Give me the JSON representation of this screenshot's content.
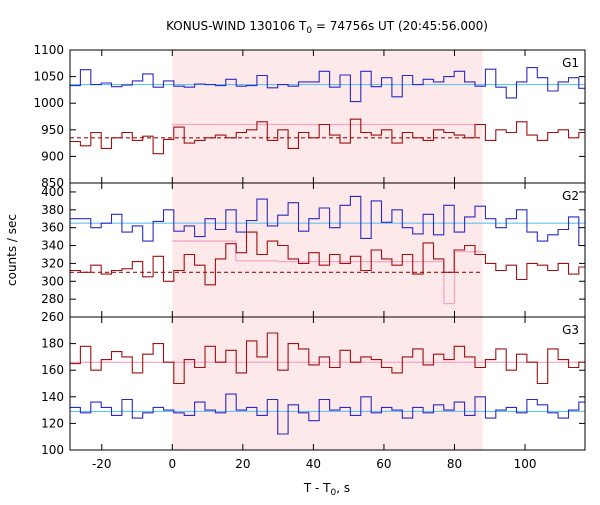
{
  "chart_data": {
    "type": "line",
    "title_main": "KONUS-WIND 130106 T",
    "title_sub": "0",
    "title_rest": " = 74756s UT (20:45:56.000)",
    "xlabel_main": "T - T",
    "xlabel_sub": "0",
    "xlabel_rest": ", s",
    "ylabel": "counts / sec",
    "xlim": [
      -29,
      117
    ],
    "xticks": [
      -20,
      0,
      20,
      40,
      60,
      80,
      100
    ],
    "highlight_interval": [
      0,
      88
    ],
    "colors": {
      "blue": "#2b2bc4",
      "red": "#a01010",
      "cyan": "#66c2ee",
      "pink_fill": "#fde8ea",
      "pink_line": "#f4a6c8"
    },
    "panels": [
      {
        "label": "G1",
        "ylim": [
          850,
          1100
        ],
        "yticks": [
          850,
          900,
          950,
          1000,
          1050,
          1100
        ],
        "hide_top_tick": false,
        "step": 2.944,
        "x_start": -29,
        "series_blue": [
          1033,
          1063,
          1035,
          1038,
          1031,
          1034,
          1042,
          1055,
          1030,
          1042,
          1032,
          1030,
          1036,
          1035,
          1033,
          1045,
          1032,
          1033,
          1052,
          1029,
          1035,
          1032,
          1040,
          1040,
          1060,
          1030,
          1053,
          1003,
          1060,
          1031,
          1048,
          1012,
          1052,
          1035,
          1045,
          1040,
          1050,
          1060,
          1040,
          1032,
          1064,
          1030,
          1010,
          1040,
          1067,
          1048,
          1023,
          1040,
          1048,
          1028,
          1054,
          1008,
          1040,
          1035,
          1043,
          1040,
          1035
        ],
        "series_red": [
          928,
          920,
          945,
          915,
          935,
          945,
          930,
          938,
          905,
          932,
          955,
          925,
          930,
          935,
          940,
          935,
          945,
          950,
          965,
          930,
          950,
          915,
          945,
          935,
          960,
          940,
          925,
          970,
          945,
          940,
          950,
          925,
          945,
          935,
          930,
          950,
          945,
          940,
          935,
          960,
          930,
          950,
          945,
          965,
          940,
          930,
          945,
          950,
          935,
          945,
          935,
          940,
          935,
          940,
          940,
          945,
          935
        ],
        "fit_blue": 1035,
        "fit_red_dashed": 935,
        "pink_steps": [
          [
            0,
            88,
            960
          ]
        ]
      },
      {
        "label": "G2",
        "ylim": [
          260,
          410
        ],
        "yticks": [
          260,
          280,
          300,
          320,
          340,
          360,
          380,
          400
        ],
        "hide_top_tick": true,
        "step": 2.944,
        "x_start": -29,
        "series_blue": [
          370,
          370,
          360,
          365,
          375,
          355,
          362,
          345,
          367,
          380,
          356,
          362,
          350,
          370,
          358,
          380,
          355,
          368,
          392,
          362,
          374,
          388,
          356,
          370,
          382,
          360,
          385,
          395,
          348,
          390,
          366,
          380,
          360,
          353,
          375,
          352,
          385,
          355,
          372,
          384,
          370,
          360,
          370,
          380,
          355,
          345,
          352,
          358,
          372,
          340,
          385,
          346,
          358,
          390,
          370,
          358,
          362
        ],
        "series_red": [
          312,
          310,
          318,
          308,
          312,
          314,
          322,
          305,
          328,
          300,
          312,
          330,
          318,
          296,
          325,
          342,
          332,
          355,
          330,
          345,
          340,
          325,
          320,
          332,
          318,
          330,
          320,
          328,
          312,
          335,
          325,
          318,
          330,
          308,
          343,
          325,
          310,
          335,
          340,
          330,
          320,
          312,
          318,
          302,
          320,
          318,
          312,
          320,
          308,
          316,
          315,
          310,
          312,
          305,
          300,
          312,
          310
        ],
        "fit_blue": 365,
        "fit_red_dashed": 310,
        "pink_steps": [
          [
            0,
            5,
            345
          ],
          [
            5,
            18,
            345
          ],
          [
            18,
            30,
            323
          ],
          [
            30,
            77,
            322
          ],
          [
            77,
            80,
            275
          ],
          [
            80,
            88,
            333
          ]
        ]
      },
      {
        "label": "G3",
        "ylim": [
          100,
          200
        ],
        "yticks": [
          100,
          120,
          140,
          160,
          180
        ],
        "hide_top_tick": true,
        "step": 2.944,
        "x_start": -29,
        "series_blue": [
          132,
          128,
          136,
          132,
          126,
          138,
          124,
          128,
          132,
          130,
          128,
          126,
          136,
          130,
          128,
          142,
          130,
          132,
          126,
          138,
          112,
          134,
          128,
          122,
          138,
          130,
          132,
          126,
          140,
          128,
          132,
          130,
          124,
          132,
          128,
          134,
          130,
          136,
          126,
          140,
          124,
          130,
          132,
          128,
          138,
          134,
          128,
          124,
          130,
          136,
          130,
          128,
          132,
          126,
          134,
          124,
          130
        ],
        "series_red": [
          165,
          178,
          160,
          168,
          174,
          170,
          158,
          172,
          180,
          166,
          150,
          168,
          162,
          178,
          166,
          175,
          158,
          182,
          170,
          188,
          160,
          180,
          176,
          164,
          170,
          162,
          175,
          166,
          170,
          168,
          162,
          158,
          170,
          176,
          164,
          172,
          168,
          178,
          170,
          162,
          168,
          176,
          160,
          172,
          166,
          150,
          176,
          168,
          162,
          166,
          170,
          166,
          168,
          174,
          164,
          170,
          162
        ],
        "fit_blue": 129,
        "fit_red": 166
      }
    ]
  }
}
